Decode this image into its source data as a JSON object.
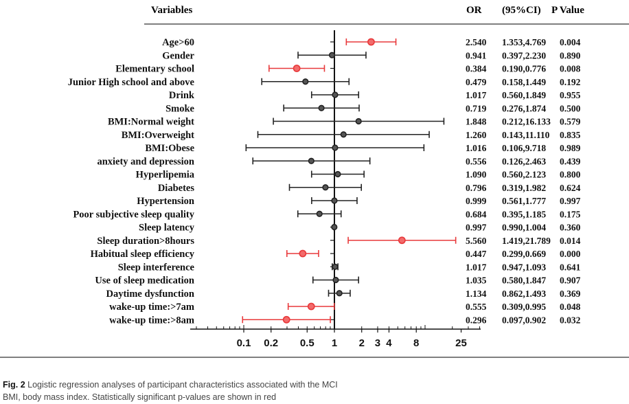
{
  "chart_data": {
    "type": "forest",
    "headers": {
      "variables": "Variables",
      "or": "OR",
      "ci": "(95%CI)",
      "p": "P Value"
    },
    "x_scale": "log",
    "x_ticks": [
      "0.1",
      "0.2",
      "0.5",
      "1",
      "2",
      "3",
      "4",
      "8",
      "25"
    ],
    "x_tick_values": [
      0.1,
      0.2,
      0.5,
      1,
      2,
      3,
      4,
      8,
      25
    ],
    "reference_line": 1,
    "colors": {
      "significant": "#e8393b",
      "nonsignificant": "#222222",
      "marker_fill": "#555555",
      "sig_marker_fill": "#f26b6b"
    },
    "rows": [
      {
        "label": "Age>60",
        "or": 2.54,
        "lower": 1.353,
        "upper": 4.769,
        "or_text": "2.540",
        "ci_text": "1.353,4.769",
        "p_text": "0.004",
        "significant": true
      },
      {
        "label": "Gender",
        "or": 0.941,
        "lower": 0.397,
        "upper": 2.23,
        "or_text": "0.941",
        "ci_text": "0.397,2.230",
        "p_text": "0.890",
        "significant": false
      },
      {
        "label": "Elementary school",
        "or": 0.384,
        "lower": 0.19,
        "upper": 0.776,
        "or_text": "0.384",
        "ci_text": "0.190,0.776",
        "p_text": "0.008",
        "significant": true
      },
      {
        "label": "Junior High school and above",
        "or": 0.479,
        "lower": 0.158,
        "upper": 1.449,
        "or_text": "0.479",
        "ci_text": "0.158,1.449",
        "p_text": "0.192",
        "significant": false
      },
      {
        "label": "Drink",
        "or": 1.017,
        "lower": 0.56,
        "upper": 1.849,
        "or_text": "1.017",
        "ci_text": "0.560,1.849",
        "p_text": "0.955",
        "significant": false
      },
      {
        "label": "Smoke",
        "or": 0.719,
        "lower": 0.276,
        "upper": 1.874,
        "or_text": "0.719",
        "ci_text": "0.276,1.874",
        "p_text": "0.500",
        "significant": false
      },
      {
        "label": "BMI:Normal weight",
        "or": 1.848,
        "lower": 0.212,
        "upper": 16.133,
        "or_text": "1.848",
        "ci_text": "0.212,16.133",
        "p_text": "0.579",
        "significant": false
      },
      {
        "label": "BMI:Overweight",
        "or": 1.26,
        "lower": 0.143,
        "upper": 11.11,
        "or_text": "1.260",
        "ci_text": "0.143,11.110",
        "p_text": "0.835",
        "significant": false
      },
      {
        "label": "BMI:Obese",
        "or": 1.016,
        "lower": 0.106,
        "upper": 9.718,
        "or_text": "1.016",
        "ci_text": "0.106,9.718",
        "p_text": "0.989",
        "significant": false
      },
      {
        "label": "anxiety and depression",
        "or": 0.556,
        "lower": 0.126,
        "upper": 2.463,
        "or_text": "0.556",
        "ci_text": "0.126,2.463",
        "p_text": "0.439",
        "significant": false
      },
      {
        "label": "Hyperlipemia",
        "or": 1.09,
        "lower": 0.56,
        "upper": 2.123,
        "or_text": "1.090",
        "ci_text": "0.560,2.123",
        "p_text": "0.800",
        "significant": false
      },
      {
        "label": "Diabetes",
        "or": 0.796,
        "lower": 0.319,
        "upper": 1.982,
        "or_text": "0.796",
        "ci_text": "0.319,1.982",
        "p_text": "0.624",
        "significant": false
      },
      {
        "label": "Hypertension",
        "or": 0.999,
        "lower": 0.561,
        "upper": 1.777,
        "or_text": "0.999",
        "ci_text": "0.561,1.777",
        "p_text": "0.997",
        "significant": false
      },
      {
        "label": "Poor subjective sleep quality",
        "or": 0.684,
        "lower": 0.395,
        "upper": 1.185,
        "or_text": "0.684",
        "ci_text": "0.395,1.185",
        "p_text": "0.175",
        "significant": false
      },
      {
        "label": "Sleep latency",
        "or": 0.997,
        "lower": 0.99,
        "upper": 1.004,
        "or_text": "0.997",
        "ci_text": "0.990,1.004",
        "p_text": "0.360",
        "significant": false
      },
      {
        "label": "Sleep duration>8hours",
        "or": 5.56,
        "lower": 1.419,
        "upper": 21.789,
        "or_text": "5.560",
        "ci_text": "1.419,21.789",
        "p_text": "0.014",
        "significant": true
      },
      {
        "label": "Habitual sleep efficiency",
        "or": 0.447,
        "lower": 0.299,
        "upper": 0.669,
        "or_text": "0.447",
        "ci_text": "0.299,0.669",
        "p_text": "0.000",
        "significant": true
      },
      {
        "label": "Sleep interference",
        "or": 1.017,
        "lower": 0.947,
        "upper": 1.093,
        "or_text": "1.017",
        "ci_text": "0.947,1.093",
        "p_text": "0.641",
        "significant": false
      },
      {
        "label": "Use of sleep medication",
        "or": 1.035,
        "lower": 0.58,
        "upper": 1.847,
        "or_text": "1.035",
        "ci_text": "0.580,1.847",
        "p_text": "0.907",
        "significant": false
      },
      {
        "label": "Daytime dysfunction",
        "or": 1.134,
        "lower": 0.862,
        "upper": 1.493,
        "or_text": "1.134",
        "ci_text": "0.862,1.493",
        "p_text": "0.369",
        "significant": false
      },
      {
        "label": "wake-up time:>7am",
        "or": 0.555,
        "lower": 0.309,
        "upper": 0.995,
        "or_text": "0.555",
        "ci_text": "0.309,0.995",
        "p_text": "0.048",
        "significant": true
      },
      {
        "label": "wake-up time:>8am",
        "or": 0.296,
        "lower": 0.097,
        "upper": 0.902,
        "or_text": "0.296",
        "ci_text": "0.097,0.902",
        "p_text": "0.032",
        "significant": true
      }
    ]
  },
  "caption": {
    "fig_label": "Fig. 2",
    "title": "Logistic regression analyses of participant characteristics associated with the MCI",
    "note": "BMI, body mass index. Statistically significant p-values are shown in red"
  }
}
